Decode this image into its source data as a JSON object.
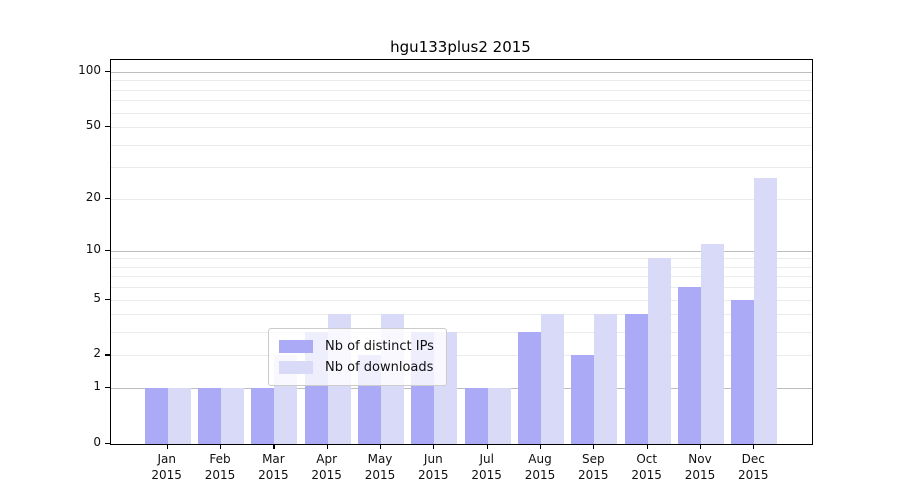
{
  "title": "hgu133plus2 2015",
  "legend": {
    "items": [
      {
        "label": "Nb of distinct IPs",
        "color": "#aaaaf6"
      },
      {
        "label": "Nb of downloads",
        "color": "#d9d9f8"
      }
    ]
  },
  "chart_data": {
    "type": "bar",
    "title": "hgu133plus2 2015",
    "categories": [
      "Jan 2015",
      "Feb 2015",
      "Mar 2015",
      "Apr 2015",
      "May 2015",
      "Jun 2015",
      "Jul 2015",
      "Aug 2015",
      "Sep 2015",
      "Oct 2015",
      "Nov 2015",
      "Dec 2015"
    ],
    "xlabel_months": [
      "Jan",
      "Feb",
      "Mar",
      "Apr",
      "May",
      "Jun",
      "Jul",
      "Aug",
      "Sep",
      "Oct",
      "Nov",
      "Dec"
    ],
    "xlabel_year": "2015",
    "series": [
      {
        "name": "Nb of distinct IPs",
        "color": "#aaaaf6",
        "values": [
          1,
          1,
          1,
          3,
          2,
          3,
          1,
          3,
          2,
          4,
          6,
          5
        ]
      },
      {
        "name": "Nb of downloads",
        "color": "#d9d9f8",
        "values": [
          1,
          1,
          2,
          4,
          4,
          3,
          1,
          4,
          4,
          9,
          11,
          26
        ]
      }
    ],
    "ylabel": "",
    "xlabel": "",
    "yscale": "log(1+y)",
    "yticks": [
      0,
      1,
      2,
      5,
      10,
      20,
      50,
      100
    ],
    "ylim_top_value": 116,
    "major_gridline_values": [
      1,
      10,
      100
    ],
    "minor_gridline_values": [
      2,
      3,
      4,
      5,
      6,
      7,
      8,
      9,
      20,
      30,
      40,
      50,
      60,
      70,
      80,
      90
    ],
    "grid": true,
    "legend_position": "lower center"
  },
  "colors": {
    "bar_dark": "#aaaaf6",
    "bar_light": "#d9d9f8",
    "grid_major": "#bdbdbd",
    "grid_minor": "#ebebeb",
    "spine": "#000000",
    "text": "#111111"
  }
}
